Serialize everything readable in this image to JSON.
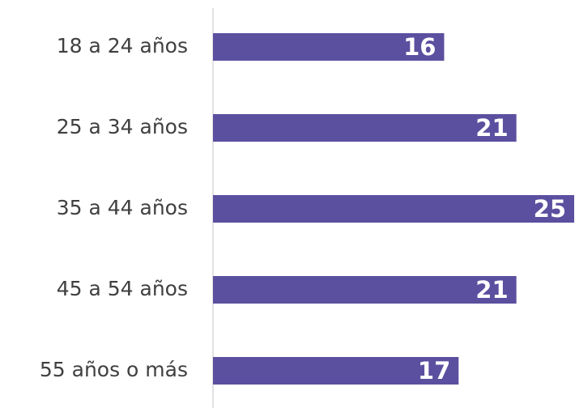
{
  "chart_data": {
    "type": "bar",
    "orientation": "horizontal",
    "categories": [
      "18 a 24 años",
      "25 a 34 años",
      "35 a 44 años",
      "45 a 54 años",
      "55 años o más"
    ],
    "values": [
      16,
      21,
      25,
      21,
      17
    ],
    "color": "#5b4f9f"
  }
}
